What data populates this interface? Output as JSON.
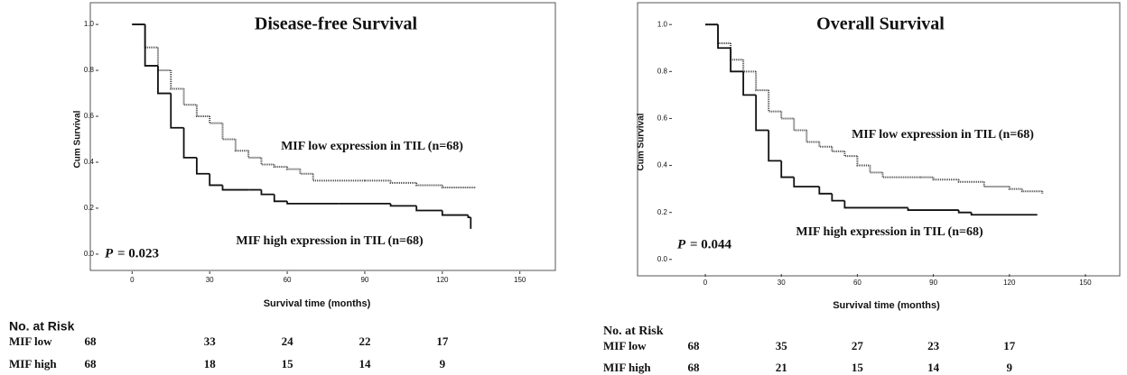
{
  "chart_data": [
    {
      "type": "line",
      "step": true,
      "title": "Disease-free Survival",
      "x_label": "Survival time (months)",
      "y_label": "Cum Survival",
      "xlim": [
        -5,
        155
      ],
      "xticks": [
        0,
        30,
        60,
        90,
        120,
        150
      ],
      "ylim": [
        -0.02,
        1.02
      ],
      "yticks": [
        {
          "value": 0,
          "label": "0.0"
        },
        0.2,
        0.4,
        0.6,
        0.8,
        {
          "value": 1,
          "label": "1.0"
        }
      ],
      "series": [
        {
          "name": "MIF low expression in TIL (n=68)",
          "color": "#444444",
          "line_style": "dotted",
          "x": [
            0,
            5,
            10,
            15,
            20,
            25,
            30,
            35,
            40,
            45,
            50,
            55,
            60,
            65,
            70,
            90,
            100,
            110,
            120,
            133
          ],
          "values": [
            1.0,
            0.9,
            0.8,
            0.72,
            0.65,
            0.6,
            0.57,
            0.5,
            0.45,
            0.42,
            0.39,
            0.38,
            0.37,
            0.35,
            0.32,
            0.32,
            0.31,
            0.3,
            0.29,
            0.29
          ]
        },
        {
          "name": "MIF high expression in TIL (n=68)",
          "color": "#111111",
          "line_style": "solid",
          "x": [
            0,
            5,
            10,
            15,
            20,
            25,
            30,
            35,
            45,
            50,
            55,
            60,
            80,
            100,
            110,
            120,
            130,
            131
          ],
          "values": [
            1.0,
            0.82,
            0.7,
            0.55,
            0.42,
            0.35,
            0.3,
            0.28,
            0.28,
            0.26,
            0.23,
            0.22,
            0.22,
            0.21,
            0.19,
            0.17,
            0.16,
            0.11
          ]
        }
      ],
      "p_symbol": "P",
      "p_text": "= 0.023",
      "risk_table": {
        "title": "No. at Risk",
        "rows": [
          {
            "label": "MIF low",
            "values": [
              68,
              33,
              24,
              22,
              17
            ]
          },
          {
            "label": "MIF high",
            "values": [
              68,
              18,
              15,
              14,
              9
            ]
          }
        ]
      }
    },
    {
      "type": "line",
      "step": true,
      "title": "Overall Survival",
      "x_label": "Survival time (months)",
      "y_label": "Cum Survival",
      "xlim": [
        -5,
        155
      ],
      "xticks": [
        0,
        30,
        60,
        90,
        120,
        150
      ],
      "ylim": [
        -0.02,
        1.02
      ],
      "yticks": [
        {
          "value": 0,
          "label": "0.0"
        },
        0.2,
        0.4,
        0.6,
        0.8,
        {
          "value": 1,
          "label": "1.0"
        }
      ],
      "series": [
        {
          "name": "MIF low expression in TIL (n=68)",
          "color": "#444444",
          "line_style": "dotted",
          "x": [
            0,
            5,
            10,
            15,
            20,
            25,
            30,
            35,
            40,
            45,
            50,
            55,
            60,
            65,
            70,
            85,
            90,
            100,
            110,
            120,
            125,
            133
          ],
          "values": [
            1.0,
            0.92,
            0.85,
            0.8,
            0.72,
            0.63,
            0.6,
            0.55,
            0.5,
            0.48,
            0.46,
            0.44,
            0.4,
            0.37,
            0.35,
            0.35,
            0.34,
            0.33,
            0.31,
            0.3,
            0.29,
            0.28
          ]
        },
        {
          "name": "MIF high expression in TIL (n=68)",
          "color": "#111111",
          "line_style": "solid",
          "x": [
            0,
            5,
            10,
            15,
            20,
            25,
            30,
            35,
            45,
            50,
            55,
            70,
            80,
            100,
            105,
            131
          ],
          "values": [
            1.0,
            0.9,
            0.8,
            0.7,
            0.55,
            0.42,
            0.35,
            0.31,
            0.28,
            0.25,
            0.22,
            0.22,
            0.21,
            0.2,
            0.19,
            0.19
          ]
        }
      ],
      "p_symbol": "P",
      "p_text": "= 0.044",
      "risk_table": {
        "title": "No. at Risk",
        "rows": [
          {
            "label": "MIF low",
            "values": [
              68,
              35,
              27,
              23,
              17
            ]
          },
          {
            "label": "MIF high",
            "values": [
              68,
              21,
              15,
              14,
              9
            ]
          }
        ]
      }
    }
  ]
}
